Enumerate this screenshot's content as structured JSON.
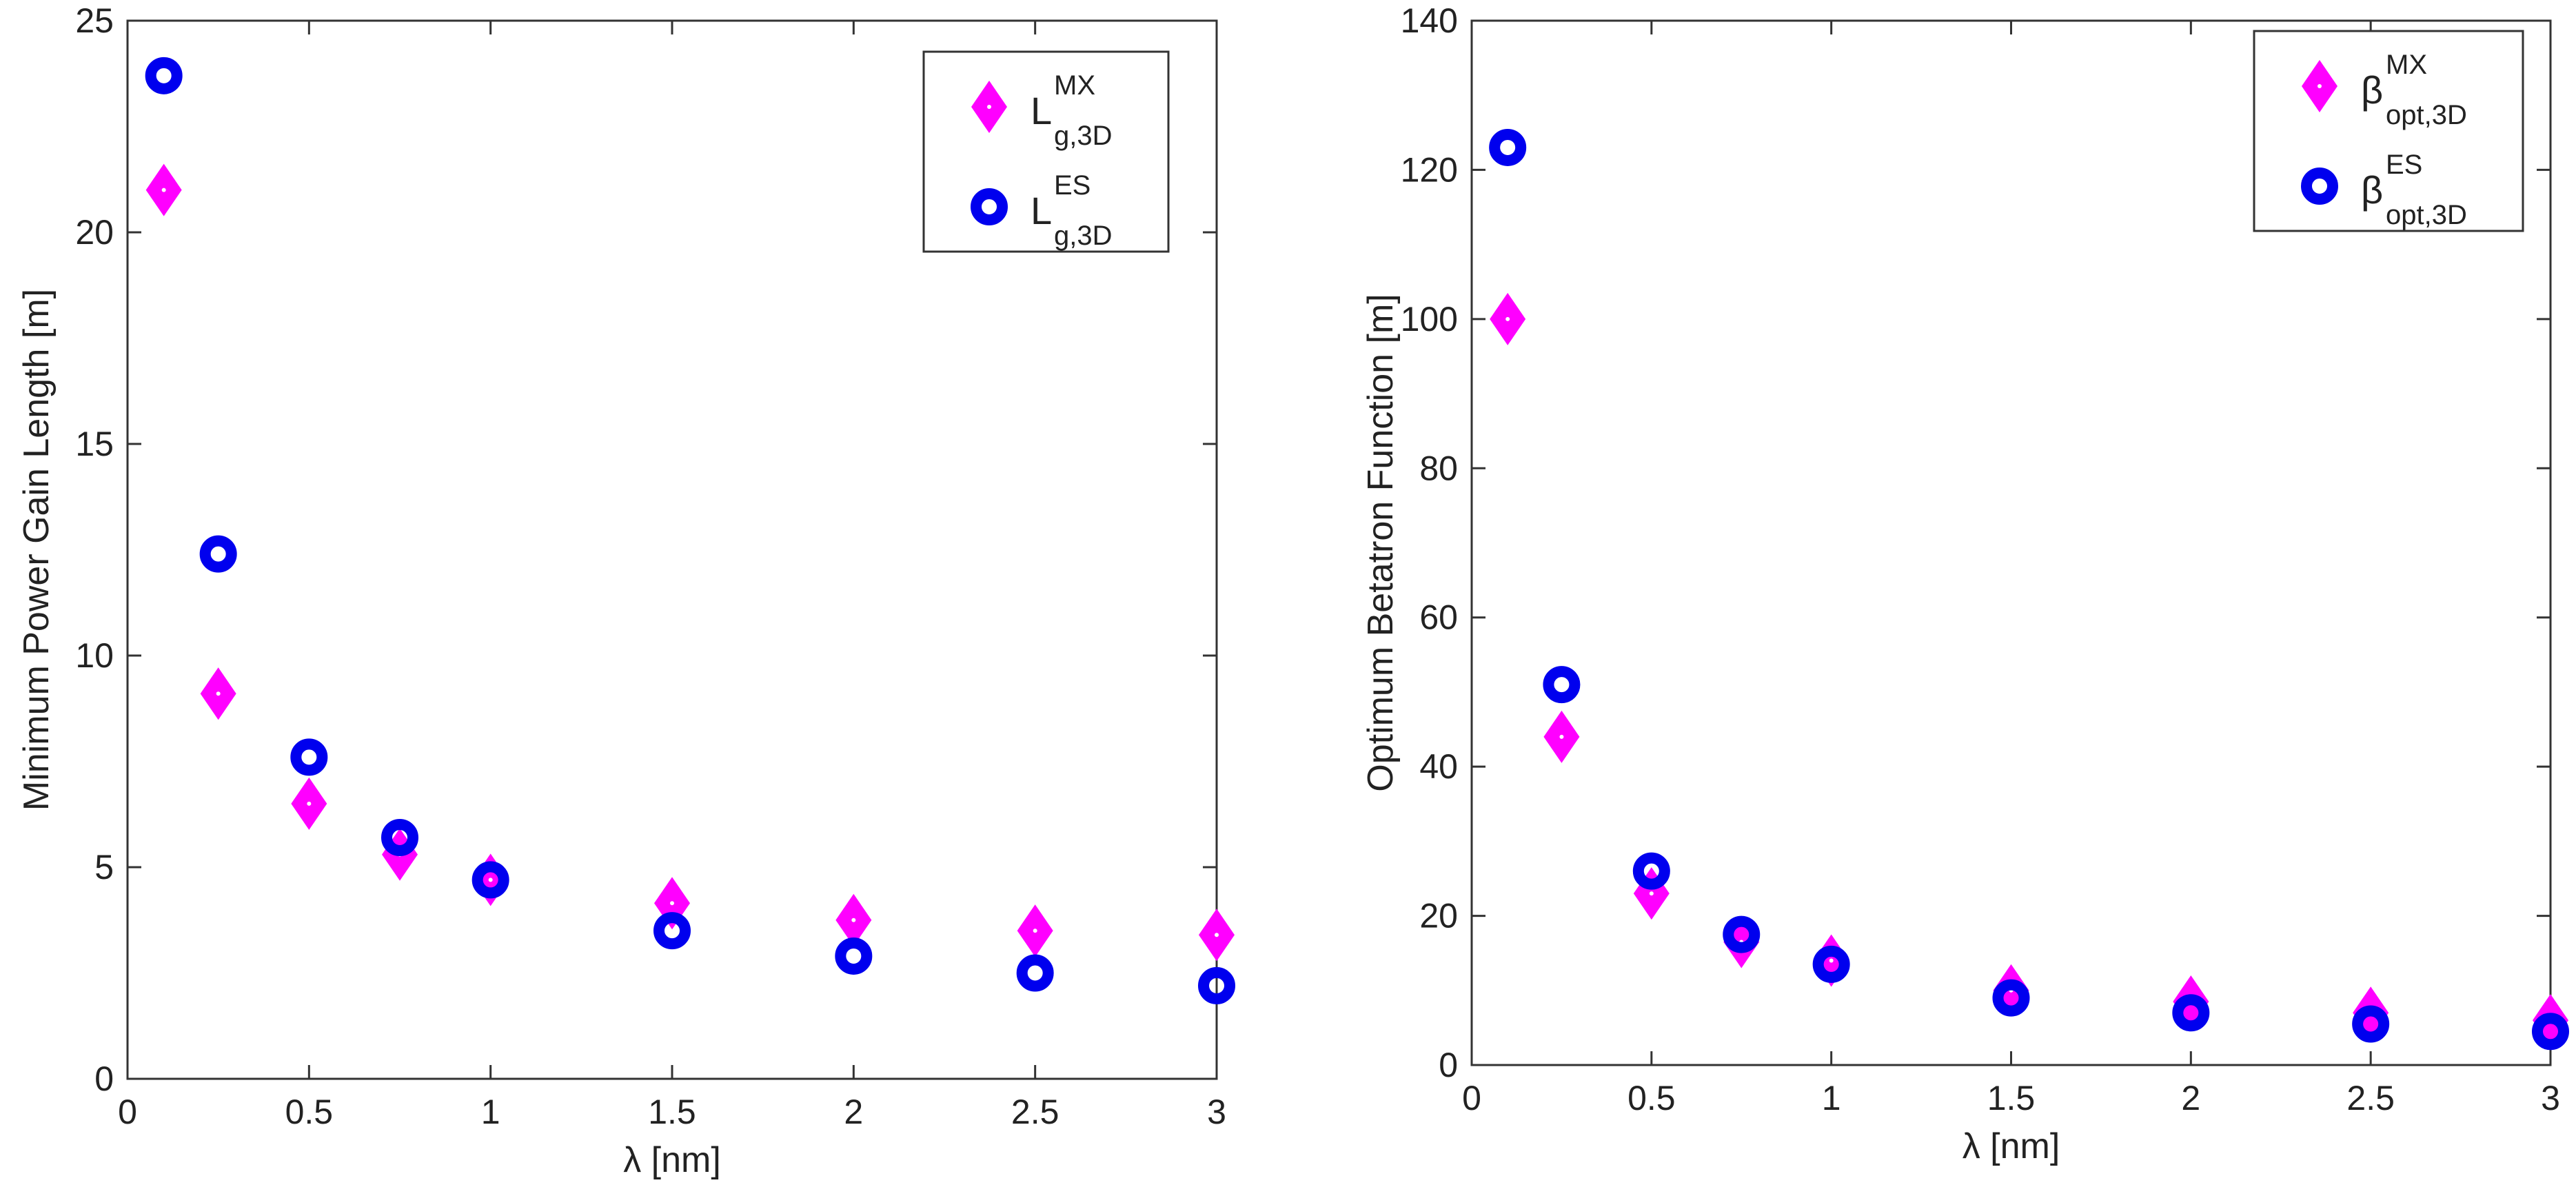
{
  "chart_data": [
    {
      "type": "scatter",
      "xlabel": "λ [nm]",
      "ylabel": "Minimum Power Gain Length [m]",
      "xlim": [
        0,
        3
      ],
      "ylim": [
        0,
        25
      ],
      "xticks": [
        0,
        0.5,
        1,
        1.5,
        2,
        2.5,
        3
      ],
      "xtick_labels": [
        "0",
        "0.5",
        "1",
        "1.5",
        "2",
        "2.5",
        "3"
      ],
      "yticks": [
        0,
        5,
        10,
        15,
        20,
        25
      ],
      "ytick_labels": [
        "0",
        "5",
        "10",
        "15",
        "20",
        "25"
      ],
      "grid": false,
      "legend_position": "top-right",
      "x": [
        0.1,
        0.25,
        0.5,
        0.75,
        1,
        1.5,
        2,
        2.5,
        3
      ],
      "series": [
        {
          "legend_base": "L",
          "legend_sub": "g,3D",
          "legend_sup": "MX",
          "marker": "diamond",
          "color": "#ff00ff",
          "values": [
            21.0,
            9.1,
            6.5,
            5.3,
            4.7,
            4.15,
            3.75,
            3.5,
            3.4
          ]
        },
        {
          "legend_base": "L",
          "legend_sub": "g,3D",
          "legend_sup": "ES",
          "marker": "circle",
          "color": "#0000ee",
          "values": [
            23.7,
            12.4,
            7.6,
            5.7,
            4.7,
            3.5,
            2.9,
            2.5,
            2.2
          ]
        }
      ]
    },
    {
      "type": "scatter",
      "xlabel": "λ [nm]",
      "ylabel": "Optimum Betatron Function [m]",
      "xlim": [
        0,
        3
      ],
      "ylim": [
        0,
        140
      ],
      "xticks": [
        0,
        0.5,
        1,
        1.5,
        2,
        2.5,
        3
      ],
      "xtick_labels": [
        "0",
        "0.5",
        "1",
        "1.5",
        "2",
        "2.5",
        "3"
      ],
      "yticks": [
        0,
        20,
        40,
        60,
        80,
        100,
        120,
        140
      ],
      "ytick_labels": [
        "0",
        "20",
        "40",
        "60",
        "80",
        "100",
        "120",
        "140"
      ],
      "grid": false,
      "legend_position": "top-right",
      "x": [
        0.1,
        0.25,
        0.5,
        0.75,
        1,
        1.5,
        2,
        2.5,
        3
      ],
      "series": [
        {
          "legend_base": "β",
          "legend_sub": "opt,3D",
          "legend_sup": "MX",
          "marker": "diamond",
          "color": "#ff00ff",
          "values": [
            100,
            44,
            23,
            16.5,
            14,
            10,
            8.5,
            7,
            6
          ]
        },
        {
          "legend_base": "β",
          "legend_sub": "opt,3D",
          "legend_sup": "ES",
          "marker": "circle",
          "color": "#0000ee",
          "values": [
            123,
            51,
            26,
            17.5,
            13.5,
            9,
            7,
            5.5,
            4.5
          ]
        }
      ]
    }
  ]
}
